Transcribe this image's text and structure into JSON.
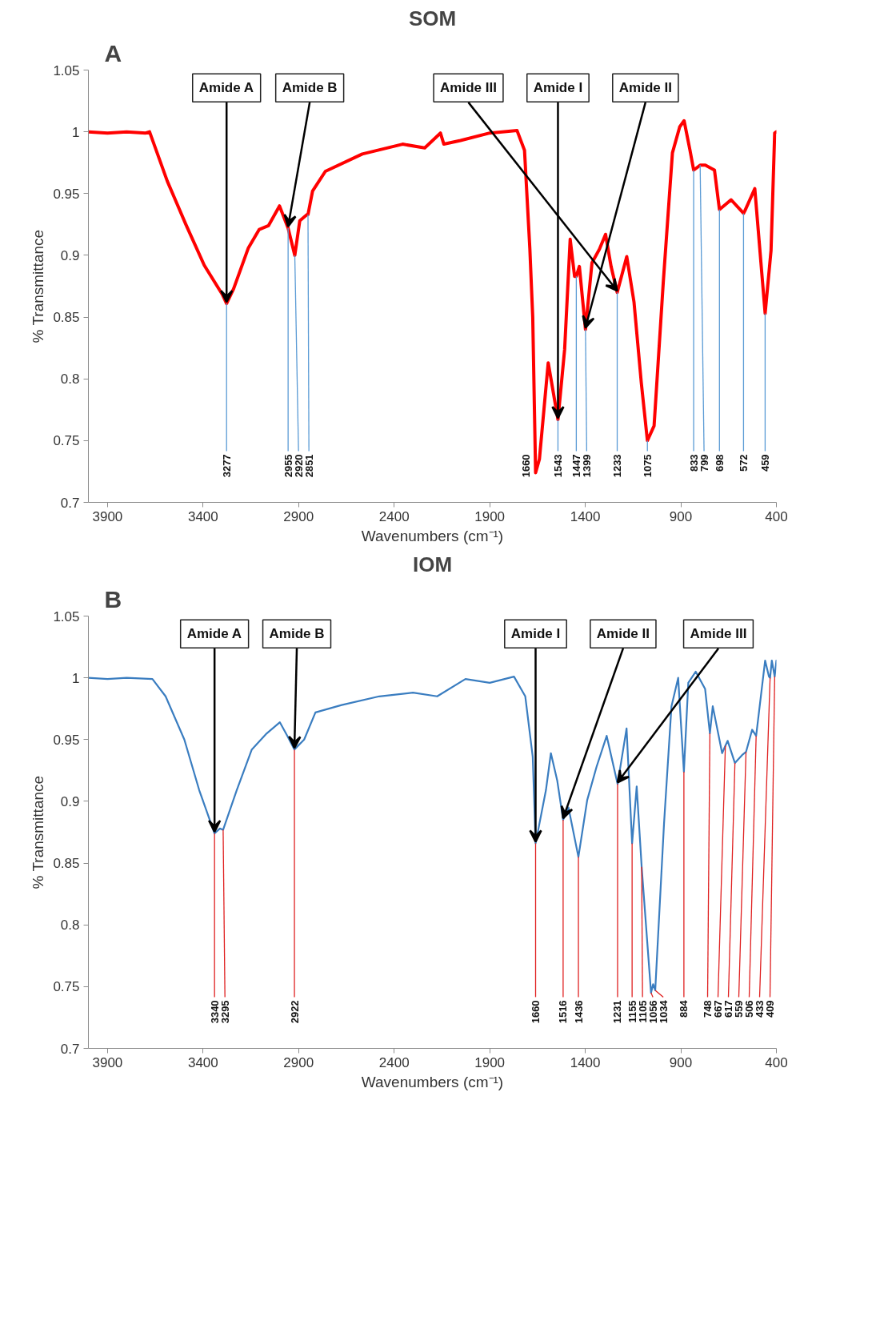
{
  "chart_data": [
    {
      "type": "line",
      "title": "SOM",
      "xlabel": "Wavenumbers (cm⁻¹)",
      "ylabel": "% Transmittance",
      "xlim": [
        4000,
        400
      ],
      "xticks": [
        3900,
        3400,
        2900,
        2400,
        1900,
        1400,
        900,
        400
      ],
      "ylim": [
        0.7,
        1.05
      ],
      "yticks": [
        0.7,
        0.75,
        0.8,
        0.85,
        0.9,
        0.95,
        1,
        1.05
      ],
      "series": [
        {
          "color": "#ff0000",
          "x": [
            4000,
            3900,
            3800,
            3700,
            3680,
            3587,
            3490,
            3394,
            3298,
            3277,
            3240,
            3163,
            3106,
            3058,
            3000,
            2955,
            2920,
            2894,
            2856,
            2851,
            2827,
            2760,
            2567,
            2356,
            2240,
            2158,
            2140,
            2053,
            1900,
            1757,
            1718,
            1690,
            1675,
            1660,
            1640,
            1594,
            1543,
            1508,
            1479,
            1456,
            1447,
            1431,
            1399,
            1365,
            1326,
            1294,
            1265,
            1233,
            1183,
            1145,
            1107,
            1075,
            1040,
            992,
            944,
            906,
            883,
            852,
            833,
            799,
            772,
            724,
            698,
            637,
            572,
            565,
            513,
            459,
            428,
            409,
            400
          ],
          "values": [
            1.0,
            0.999,
            1.0,
            0.999,
            1.0,
            0.96,
            0.925,
            0.892,
            0.868,
            0.861,
            0.873,
            0.906,
            0.921,
            0.924,
            0.94,
            0.922,
            0.9,
            0.928,
            0.933,
            0.933,
            0.952,
            0.968,
            0.982,
            0.99,
            0.987,
            0.999,
            0.99,
            0.993,
            0.999,
            1.001,
            0.985,
            0.905,
            0.85,
            0.724,
            0.735,
            0.813,
            0.767,
            0.824,
            0.913,
            0.883,
            0.883,
            0.891,
            0.84,
            0.894,
            0.905,
            0.917,
            0.891,
            0.87,
            0.899,
            0.862,
            0.797,
            0.75,
            0.762,
            0.878,
            0.983,
            1.004,
            1.009,
            0.985,
            0.969,
            0.973,
            0.973,
            0.969,
            0.937,
            0.945,
            0.934,
            0.936,
            0.954,
            0.853,
            0.904,
            0.999,
            1.0
          ]
        }
      ],
      "annotations": [
        "A",
        {
          "text": "Amide A",
          "x": 3277
        },
        {
          "text": "Amide B",
          "x": 2955
        },
        {
          "text": "Amide I",
          "x": 1543
        },
        {
          "text": "Amide II",
          "x": 1399
        },
        {
          "text": "Amide III",
          "x": 1233
        },
        {
          "text": "3277",
          "x": 3277,
          "y": 0.861
        },
        {
          "text": "2955",
          "x": 2955,
          "y": 0.922
        },
        {
          "text": "2920",
          "x": 2920,
          "y": 0.9
        },
        {
          "text": "2851",
          "x": 2851,
          "y": 0.933
        },
        {
          "text": "1660",
          "x": 1660,
          "y": 0.724
        },
        {
          "text": "1543",
          "x": 1543,
          "y": 0.767
        },
        {
          "text": "1447",
          "x": 1447,
          "y": 0.883
        },
        {
          "text": "1399",
          "x": 1399,
          "y": 0.84
        },
        {
          "text": "1233",
          "x": 1233,
          "y": 0.87
        },
        {
          "text": "1075",
          "x": 1075,
          "y": 0.75
        },
        {
          "text": "833",
          "x": 833,
          "y": 0.969
        },
        {
          "text": "799",
          "x": 799,
          "y": 0.973
        },
        {
          "text": "698",
          "x": 698,
          "y": 0.937
        },
        {
          "text": "572",
          "x": 572,
          "y": 0.934
        },
        {
          "text": "459",
          "x": 459,
          "y": 0.853
        }
      ]
    },
    {
      "type": "line",
      "title": "IOM",
      "xlabel": "Wavenumbers (cm⁻¹)",
      "ylabel": "% Transmittance",
      "xlim": [
        4000,
        400
      ],
      "xticks": [
        3900,
        3400,
        2900,
        2400,
        1900,
        1400,
        900,
        400
      ],
      "ylim": [
        0.7,
        1.05
      ],
      "yticks": [
        0.7,
        0.75,
        0.8,
        0.85,
        0.9,
        0.95,
        1,
        1.05
      ],
      "series": [
        {
          "color": "#3a7dc0",
          "x": [
            4000,
            3900,
            3800,
            3665,
            3596,
            3498,
            3420,
            3340,
            3312,
            3295,
            3224,
            3145,
            3067,
            2998,
            2959,
            2922,
            2871,
            2812,
            2675,
            2478,
            2302,
            2175,
            2027,
            1900,
            1773,
            1714,
            1675,
            1660,
            1606,
            1580,
            1547,
            1516,
            1488,
            1436,
            1390,
            1341,
            1288,
            1231,
            1184,
            1155,
            1131,
            1105,
            1056,
            1045,
            1034,
            988,
            949,
            914,
            884,
            861,
            822,
            773,
            748,
            733,
            684,
            667,
            655,
            617,
            576,
            559,
            527,
            506,
            459,
            439,
            433,
            424,
            409,
            400
          ],
          "values": [
            1.0,
            0.999,
            1.0,
            0.999,
            0.985,
            0.95,
            0.909,
            0.874,
            0.878,
            0.877,
            0.909,
            0.942,
            0.955,
            0.964,
            0.953,
            0.942,
            0.95,
            0.972,
            0.978,
            0.985,
            0.988,
            0.985,
            0.999,
            0.996,
            1.001,
            0.985,
            0.936,
            0.866,
            0.909,
            0.939,
            0.917,
            0.885,
            0.895,
            0.855,
            0.901,
            0.928,
            0.953,
            0.914,
            0.959,
            0.866,
            0.912,
            0.847,
            0.745,
            0.752,
            0.747,
            0.882,
            0.977,
            1.0,
            0.924,
            0.996,
            1.005,
            0.991,
            0.955,
            0.977,
            0.939,
            0.945,
            0.949,
            0.931,
            0.938,
            0.94,
            0.958,
            0.953,
            1.014,
            1.001,
            1.0,
            1.014,
            1.001,
            1.014
          ]
        }
      ],
      "annotations": [
        "B",
        {
          "text": "Amide A",
          "x": 3340
        },
        {
          "text": "Amide B",
          "x": 2922
        },
        {
          "text": "Amide I",
          "x": 1660
        },
        {
          "text": "Amide II",
          "x": 1516
        },
        {
          "text": "Amide III",
          "x": 1231
        },
        {
          "text": "3340",
          "x": 3340,
          "y": 0.874
        },
        {
          "text": "3295",
          "x": 3295,
          "y": 0.877
        },
        {
          "text": "2922",
          "x": 2922,
          "y": 0.942
        },
        {
          "text": "1660",
          "x": 1660,
          "y": 0.866
        },
        {
          "text": "1516",
          "x": 1516,
          "y": 0.885
        },
        {
          "text": "1436",
          "x": 1436,
          "y": 0.855
        },
        {
          "text": "1231",
          "x": 1231,
          "y": 0.914
        },
        {
          "text": "1155",
          "x": 1155,
          "y": 0.866
        },
        {
          "text": "1105",
          "x": 1105,
          "y": 0.847
        },
        {
          "text": "1056",
          "x": 1056,
          "y": 0.745
        },
        {
          "text": "1034",
          "x": 1034,
          "y": 0.747
        },
        {
          "text": "884",
          "x": 884,
          "y": 0.924
        },
        {
          "text": "748",
          "x": 748,
          "y": 0.955
        },
        {
          "text": "667",
          "x": 667,
          "y": 0.945
        },
        {
          "text": "617",
          "x": 617,
          "y": 0.931
        },
        {
          "text": "559",
          "x": 559,
          "y": 0.94
        },
        {
          "text": "506",
          "x": 506,
          "y": 0.953
        },
        {
          "text": "433",
          "x": 433,
          "y": 1.0
        },
        {
          "text": "409",
          "x": 409,
          "y": 1.001
        }
      ]
    }
  ]
}
